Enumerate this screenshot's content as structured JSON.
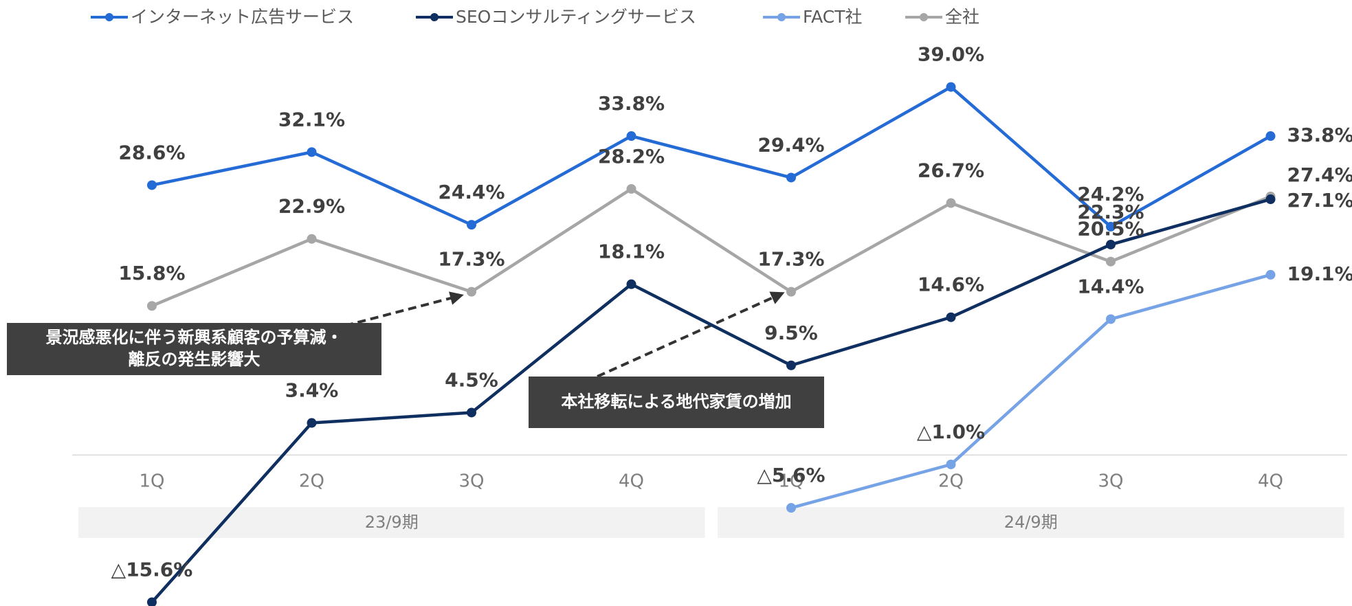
{
  "chart_data": {
    "type": "line",
    "categories": [
      "1Q",
      "2Q",
      "3Q",
      "4Q",
      "1Q",
      "2Q",
      "3Q",
      "4Q"
    ],
    "groups": [
      "23/9期",
      "24/9期"
    ],
    "ylim": [
      -16,
      48
    ],
    "series": [
      {
        "name": "インターネット広告サービス",
        "color": "#246bd6",
        "values": [
          28.6,
          32.1,
          24.4,
          33.8,
          29.4,
          39.0,
          24.2,
          33.8
        ],
        "value_labels": [
          "28.6%",
          "32.1%",
          "24.4%",
          "33.8%",
          "29.4%",
          "39.0%",
          "24.2%",
          "33.8%"
        ]
      },
      {
        "name": "SEOコンサルティングサービス",
        "color": "#0f2f60",
        "values": [
          -15.6,
          3.4,
          4.5,
          18.1,
          9.5,
          14.6,
          22.3,
          27.1
        ],
        "value_labels": [
          "△15.6%",
          "3.4%",
          "4.5%",
          "18.1%",
          "9.5%",
          "14.6%",
          "22.3%",
          "27.1%"
        ]
      },
      {
        "name": "FACT社",
        "color": "#76a3e6",
        "values": [
          null,
          null,
          null,
          null,
          -5.6,
          -1.0,
          14.4,
          19.1
        ],
        "value_labels": [
          null,
          null,
          null,
          null,
          "△5.6%",
          "△1.0%",
          "14.4%",
          "19.1%"
        ]
      },
      {
        "name": "全社",
        "color": "#a6a6a6",
        "values": [
          15.8,
          22.9,
          17.3,
          28.2,
          17.3,
          26.7,
          20.5,
          27.4
        ],
        "value_labels": [
          "15.8%",
          "22.9%",
          "17.3%",
          "28.2%",
          "17.3%",
          "26.7%",
          "20.5%",
          "27.4%"
        ]
      }
    ],
    "annotations": [
      {
        "lines": [
          "景況感悪化に伴う新興系顧客の予算減・",
          "離反の発生影響大"
        ]
      },
      {
        "lines": [
          "本社移転による地代家賃の増加"
        ]
      }
    ]
  }
}
